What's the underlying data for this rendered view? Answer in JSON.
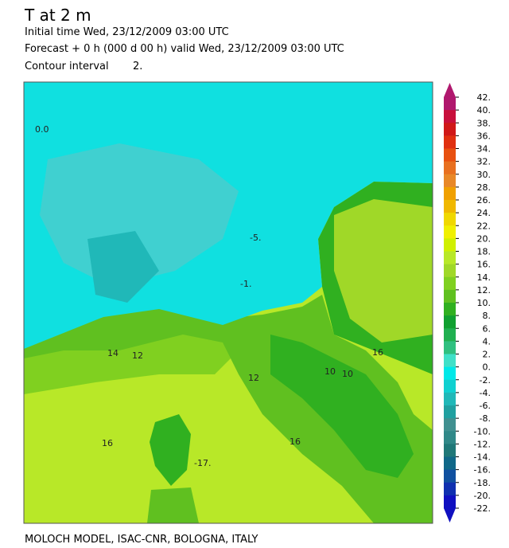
{
  "header": {
    "title": "T at 2 m",
    "initial_time": "Initial time  Wed, 23/12/2009  03:00 UTC",
    "forecast": "Forecast +  0 h  (000 d 00 h)  valid Wed, 23/12/2009 03:00 UTC",
    "contour_interval_label": "Contour interval",
    "contour_interval_value": "2."
  },
  "colorbar": {
    "labels": [
      "42.",
      "40.",
      "38.",
      "36.",
      "34.",
      "32.",
      "30.",
      "28.",
      "26.",
      "24.",
      "22.",
      "20.",
      "18.",
      "16.",
      "14.",
      "12.",
      "10.",
      "8.",
      "6.",
      "4.",
      "2.",
      "0.",
      "-2.",
      "-4.",
      "-6.",
      "-8.",
      "-10.",
      "-12.",
      "-14.",
      "-16.",
      "-18.",
      "-20.",
      "-22."
    ],
    "colors": [
      "#b0186e",
      "#c8103c",
      "#d01818",
      "#e03010",
      "#e85010",
      "#e87020",
      "#e88828",
      "#f0a000",
      "#f0b800",
      "#f0d800",
      "#f0f000",
      "#d0f000",
      "#b8e828",
      "#a0d828",
      "#80d020",
      "#60c020",
      "#30b020",
      "#10a030",
      "#20b050",
      "#30c080",
      "#40e0c8",
      "#00e8e8",
      "#10d0d0",
      "#20b8b8",
      "#20a0a0",
      "#409090",
      "#308888",
      "#207878",
      "#106888",
      "#1050a0",
      "#1030b0",
      "#1010c0"
    ]
  },
  "map_labels": [
    "0.0",
    "-5.",
    "-1.",
    "14",
    "12",
    "16",
    "12",
    "10",
    "10",
    "16",
    "16",
    "-17."
  ],
  "footer": "MOLOCH MODEL,  ISAC-CNR,   BOLOGNA,   ITALY"
}
